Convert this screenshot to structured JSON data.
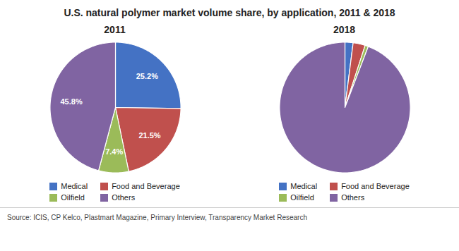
{
  "title": "U.S. natural polymer market volume share, by application, 2011 & 2018",
  "annotations": [
    "Source: ICIS, CP Kelco, Plastmart Magazine, Primary Interview, Transparency Market Research"
  ],
  "chart_data": [
    {
      "type": "pie",
      "title": "2011",
      "categories": [
        "Medical",
        "Food and Beverage",
        "Oilfield",
        "Others"
      ],
      "values": [
        25.2,
        21.5,
        7.4,
        45.8
      ],
      "value_labels": [
        "25.2%",
        "21.5%",
        "7.4%",
        "45.8%"
      ],
      "colors": [
        "#4472c4",
        "#c0504d",
        "#9bbb59",
        "#8064a2"
      ],
      "data_labels": true,
      "legend": "bottom"
    },
    {
      "type": "pie",
      "title": "2018",
      "categories": [
        "Medical",
        "Food and Beverage",
        "Oilfield",
        "Others"
      ],
      "values": [
        2.0,
        3.0,
        0.8,
        94.2
      ],
      "colors": [
        "#4472c4",
        "#c0504d",
        "#9bbb59",
        "#8064a2"
      ],
      "data_labels": false,
      "legend": "bottom"
    }
  ]
}
